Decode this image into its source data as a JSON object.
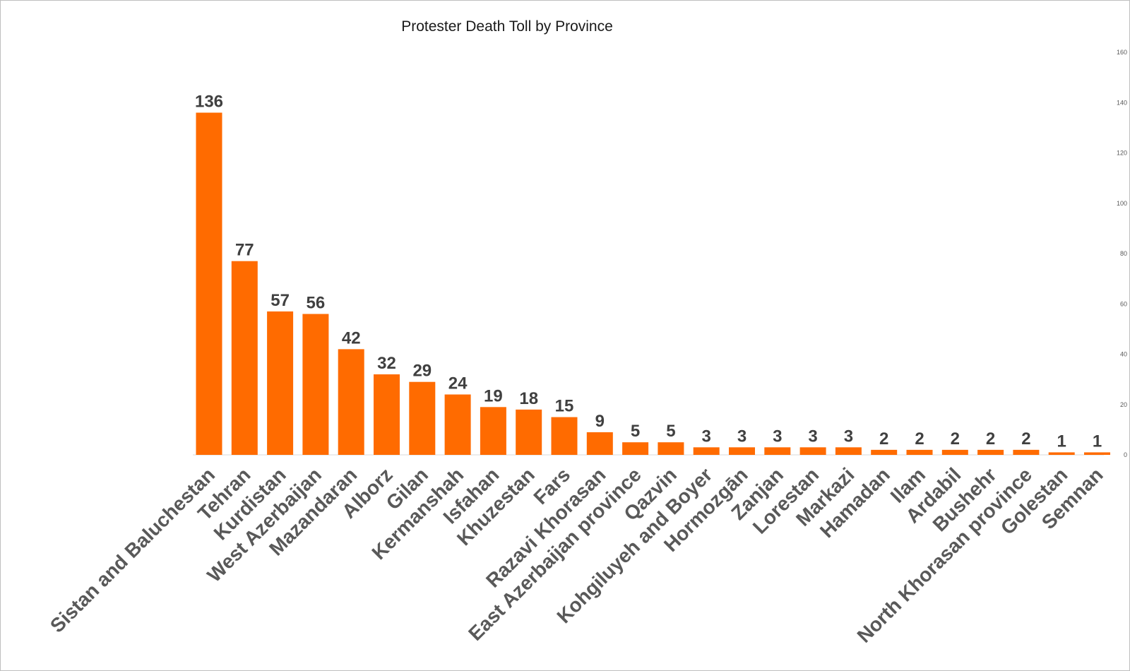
{
  "chart_data": {
    "type": "bar",
    "title": "Protester Death Toll by Province",
    "xlabel": "",
    "ylabel": "",
    "ylim": [
      0,
      160
    ],
    "yticks": [
      0,
      20,
      40,
      60,
      80,
      100,
      120,
      140,
      160
    ],
    "grid": false,
    "legend": "none",
    "color": "#ff6b00",
    "categories": [
      "Sistan and Baluchestan",
      "Tehran",
      "Kurdistan",
      "West Azerbaijan",
      "Mazandaran",
      "Alborz",
      "Gilan",
      "Kermanshah",
      "Isfahan",
      "Khuzestan",
      "Fars",
      "Razavi Khorasan",
      "East Azerbaijan province",
      "Qazvin",
      "Kohgiluyeh and Boyer",
      "Hormozgān",
      "Zanjan",
      "Lorestan",
      "Markazi",
      "Hamadan",
      "Ilam",
      "Ardabil",
      "Bushehr",
      "North Khorasan province",
      "Golestan",
      "Semnan"
    ],
    "values": [
      136,
      77,
      57,
      56,
      42,
      32,
      29,
      24,
      19,
      18,
      15,
      9,
      5,
      5,
      3,
      3,
      3,
      3,
      3,
      2,
      2,
      2,
      2,
      2,
      1,
      1
    ]
  }
}
